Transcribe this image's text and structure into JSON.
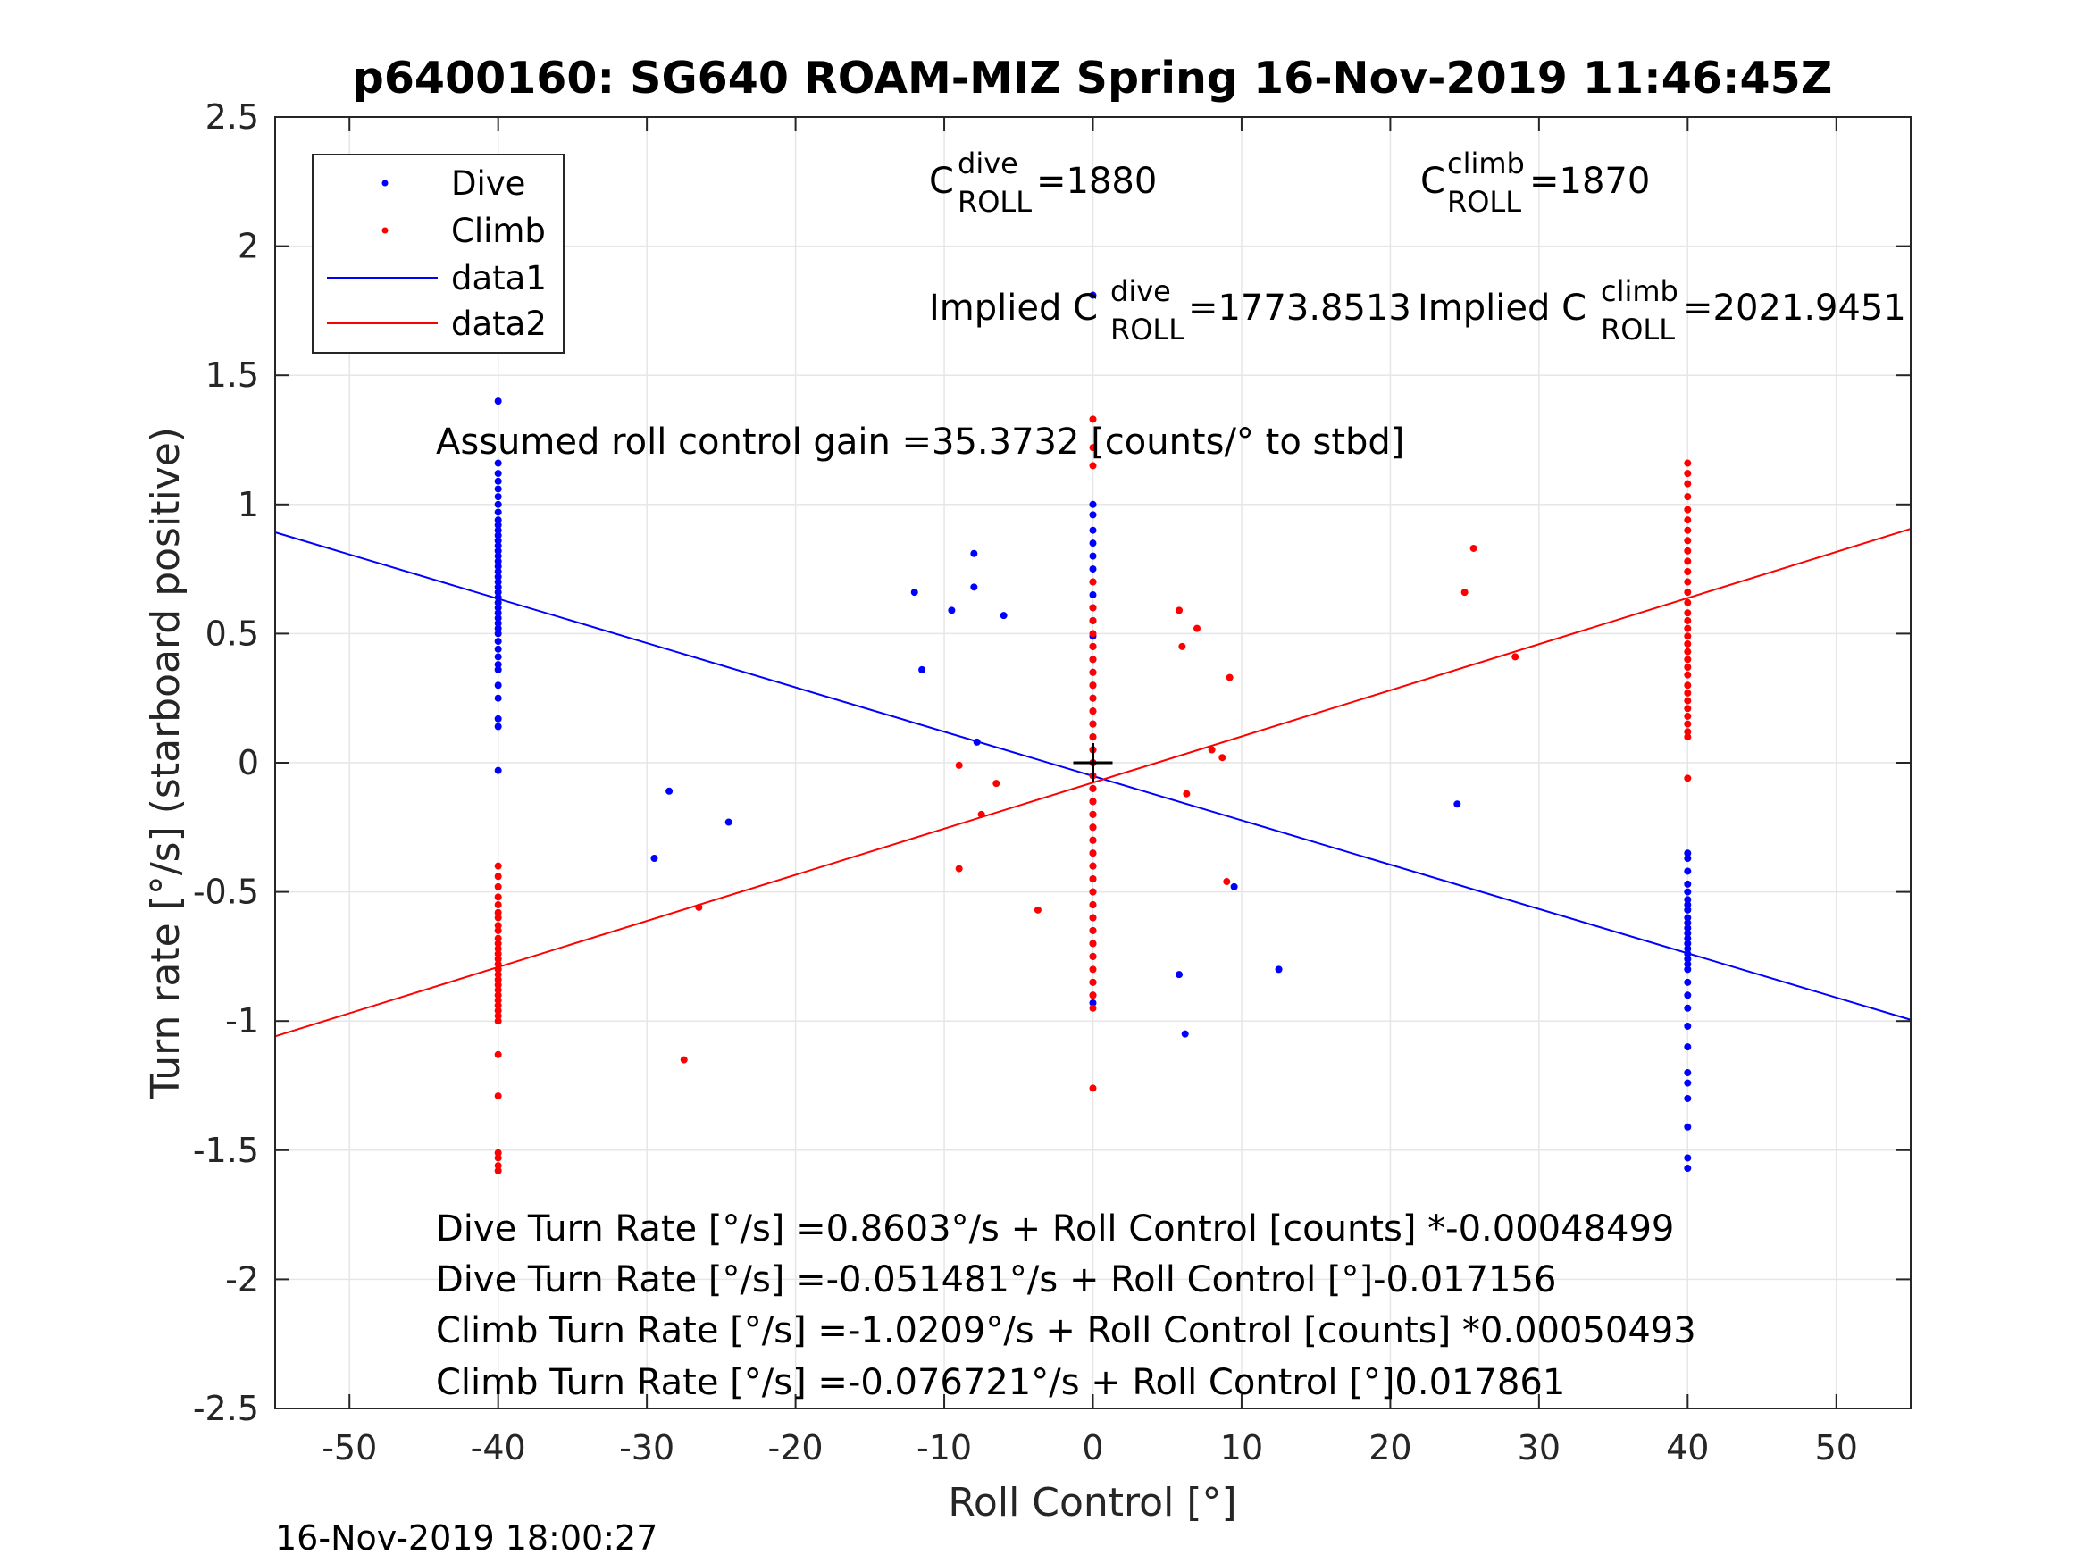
{
  "chart_data": {
    "type": "scatter",
    "title": "p6400160: SG640 ROAM-MIZ Spring 16-Nov-2019 11:46:45Z",
    "xlabel": "Roll Control [°]",
    "ylabel": "Turn rate [°/s] (starboard positive)",
    "xlim": [
      -55,
      55
    ],
    "ylim": [
      -2.5,
      2.5
    ],
    "xticks": [
      -50,
      -40,
      -30,
      -20,
      -10,
      0,
      10,
      20,
      30,
      40,
      50
    ],
    "xtick_labels": [
      "-50",
      "-40",
      "-30",
      "-20",
      "-10",
      "0",
      "10",
      "20",
      "30",
      "40",
      "50"
    ],
    "yticks": [
      2.5,
      2,
      1.5,
      1,
      0.5,
      0,
      -0.5,
      -1,
      -1.5,
      -2,
      -2.5
    ],
    "ytick_labels": [
      "2.5",
      "2",
      "1.5",
      "1",
      "0.5",
      "0",
      "-0.5",
      "-1",
      "-1.5",
      "-2",
      "-2.5"
    ],
    "grid": true,
    "legend_position": "top-left",
    "legend": [
      "Dive",
      "Climb",
      "data1",
      "data2"
    ],
    "series": [
      {
        "name": "Dive",
        "kind": "points",
        "color": "#0000ff",
        "x": [
          -40,
          -40,
          -40,
          -40,
          -40,
          -40,
          -40,
          -40,
          -40,
          -40,
          -40,
          -40,
          -40,
          -40,
          -40,
          -40,
          -40,
          -40,
          -40,
          -40,
          -40,
          -40,
          -40,
          -40,
          -40,
          -40,
          -40,
          -40,
          -40,
          -40,
          -40,
          -40,
          -40,
          -40,
          -40,
          -40,
          -40,
          -40,
          -40,
          -40,
          -40,
          -8,
          -12,
          -8,
          -9.5,
          -6,
          -11.5,
          -7.8,
          -28.5,
          -24.5,
          -29.5,
          5.8,
          6.2,
          9.5,
          12.5,
          24.5,
          0,
          0,
          0,
          0,
          0,
          0,
          0,
          0,
          0,
          0,
          0,
          0,
          0,
          0,
          0,
          0,
          0,
          0,
          0,
          0,
          0,
          0,
          0,
          0,
          0,
          0,
          0,
          0,
          0,
          0,
          0,
          0,
          0,
          0,
          0,
          0,
          0,
          0,
          0,
          0,
          40,
          40,
          40,
          40,
          40,
          40,
          40,
          40,
          40,
          40,
          40,
          40,
          40,
          40,
          40,
          40,
          40,
          40,
          40,
          40,
          40,
          40,
          40,
          40,
          40,
          40,
          40,
          40,
          40,
          40
        ],
        "y": [
          1.4,
          1.16,
          1.12,
          1.09,
          1.06,
          1.03,
          1.0,
          0.97,
          0.94,
          0.92,
          0.9,
          0.88,
          0.86,
          0.84,
          0.82,
          0.8,
          0.78,
          0.76,
          0.74,
          0.72,
          0.7,
          0.68,
          0.66,
          0.64,
          0.62,
          0.6,
          0.58,
          0.56,
          0.54,
          0.52,
          0.5,
          0.47,
          0.44,
          0.41,
          0.38,
          0.36,
          0.3,
          0.25,
          0.17,
          0.14,
          -0.03,
          0.81,
          0.66,
          0.68,
          0.59,
          0.57,
          0.36,
          0.08,
          -0.11,
          -0.23,
          -0.37,
          -0.82,
          -1.05,
          -0.48,
          -0.8,
          -0.16,
          1.81,
          1.0,
          0.96,
          0.9,
          0.85,
          0.8,
          0.75,
          0.7,
          0.65,
          0.6,
          0.55,
          0.49,
          0.45,
          0.4,
          0.35,
          0.3,
          0.25,
          0.2,
          0.15,
          0.1,
          0.05,
          0.0,
          -0.05,
          -0.1,
          -0.15,
          -0.2,
          -0.25,
          -0.3,
          -0.35,
          -0.4,
          -0.45,
          -0.5,
          -0.55,
          -0.6,
          -0.65,
          -0.7,
          -0.75,
          -0.85,
          -0.9,
          -0.93,
          -0.35,
          -0.37,
          -0.42,
          -0.47,
          -0.5,
          -0.53,
          -0.55,
          -0.57,
          -0.6,
          -0.62,
          -0.64,
          -0.66,
          -0.68,
          -0.7,
          -0.72,
          -0.74,
          -0.76,
          -0.78,
          -0.8,
          -0.85,
          -0.9,
          -0.95,
          -1.02,
          -1.1,
          -1.2,
          -1.24,
          -1.3,
          -1.41,
          -1.53,
          -1.57
        ]
      },
      {
        "name": "Climb",
        "kind": "points",
        "color": "#ff0000",
        "x": [
          -40,
          -40,
          -40,
          -40,
          -40,
          -40,
          -40,
          -40,
          -40,
          -40,
          -40,
          -40,
          -40,
          -40,
          -40,
          -40,
          -40,
          -40,
          -40,
          -40,
          -40,
          -40,
          -40,
          -40,
          -40,
          -40,
          -40,
          -40,
          -40,
          -40,
          -40,
          -40,
          -9,
          -6.5,
          -7.5,
          -9,
          -3.7,
          -26.5,
          -27.5,
          5.8,
          6,
          7,
          9.2,
          8,
          8.7,
          6.3,
          9,
          25,
          25.6,
          28.4,
          0,
          0,
          0,
          0,
          0,
          0,
          0,
          0,
          0,
          0,
          0,
          0,
          0,
          0,
          0,
          0,
          0,
          0,
          0,
          0,
          0,
          0,
          0,
          0,
          0,
          0,
          0,
          0,
          0,
          0,
          0,
          0,
          0,
          0,
          0,
          0,
          0,
          40,
          40,
          40,
          40,
          40,
          40,
          40,
          40,
          40,
          40,
          40,
          40,
          40,
          40,
          40,
          40,
          40,
          40,
          40,
          40,
          40,
          40,
          40,
          40,
          40,
          40,
          40,
          40,
          40,
          40,
          40,
          40
        ],
        "y": [
          -0.4,
          -0.44,
          -0.48,
          -0.52,
          -0.55,
          -0.58,
          -0.6,
          -0.63,
          -0.65,
          -0.68,
          -0.7,
          -0.72,
          -0.74,
          -0.76,
          -0.78,
          -0.8,
          -0.82,
          -0.84,
          -0.86,
          -0.88,
          -0.9,
          -0.92,
          -0.94,
          -0.96,
          -0.98,
          -1.0,
          -1.13,
          -1.29,
          -1.51,
          -1.53,
          -1.56,
          -1.58,
          -0.01,
          -0.08,
          -0.2,
          -0.41,
          -0.57,
          -0.56,
          -1.15,
          0.59,
          0.45,
          0.52,
          0.33,
          0.05,
          0.02,
          -0.12,
          -0.46,
          0.66,
          0.83,
          0.41,
          1.33,
          1.22,
          1.15,
          0.7,
          0.6,
          0.55,
          0.5,
          0.45,
          0.4,
          0.35,
          0.3,
          0.25,
          0.2,
          0.15,
          0.1,
          0.05,
          0.0,
          -0.05,
          -0.1,
          -0.15,
          -0.2,
          -0.25,
          -0.3,
          -0.35,
          -0.4,
          -0.45,
          -0.5,
          -0.55,
          -0.6,
          -0.65,
          -0.7,
          -0.75,
          -0.8,
          -0.85,
          -0.9,
          -0.95,
          -1.26,
          1.16,
          1.12,
          1.08,
          1.03,
          0.98,
          0.94,
          0.9,
          0.86,
          0.82,
          0.78,
          0.74,
          0.7,
          0.66,
          0.62,
          0.58,
          0.55,
          0.52,
          0.49,
          0.46,
          0.43,
          0.4,
          0.37,
          0.34,
          0.3,
          0.27,
          0.24,
          0.21,
          0.18,
          0.15,
          0.12,
          0.1,
          -0.06
        ]
      },
      {
        "name": "data1",
        "kind": "line",
        "color": "#0000ff",
        "x": [
          -55,
          55
        ],
        "y": [
          0.8921,
          -0.995
        ]
      },
      {
        "name": "data2",
        "kind": "line",
        "color": "#ff0000",
        "x": [
          -55,
          55
        ],
        "y": [
          -1.0591,
          0.9056
        ]
      }
    ],
    "marker": {
      "x": 0,
      "y": 0,
      "symbol": "+"
    },
    "annotations": {
      "c_dive_label": "C",
      "c_dive_sup": "dive",
      "c_dive_sub": "ROLL",
      "c_dive_value": " =1880",
      "c_climb_label": "C",
      "c_climb_sup": "climb",
      "c_climb_sub": "ROLL",
      "c_climb_value": " =1870",
      "implied_dive_prefix": "Implied C",
      "implied_dive_sup": "dive",
      "implied_dive_sub": "ROLL",
      "implied_dive_value": " =1773.8513",
      "implied_climb_prefix": "Implied C",
      "implied_climb_sup": "climb",
      "implied_climb_sub": "ROLL",
      "implied_climb_value": " =2021.9451",
      "gain": "Assumed roll control gain =35.3732 [counts/° to stbd]",
      "eq1": "Dive Turn Rate [°/s] =0.8603°/s + Roll Control [counts] *-0.00048499",
      "eq2": "Dive Turn Rate [°/s] =-0.051481°/s + Roll Control [°]-0.017156",
      "eq3": "Climb Turn Rate [°/s] =-1.0209°/s + Roll Control [counts] *0.00050493",
      "eq4": "Climb Turn Rate [°/s] =-0.076721°/s + Roll Control [°]0.017861"
    },
    "timestamp": "16-Nov-2019 18:00:27"
  }
}
